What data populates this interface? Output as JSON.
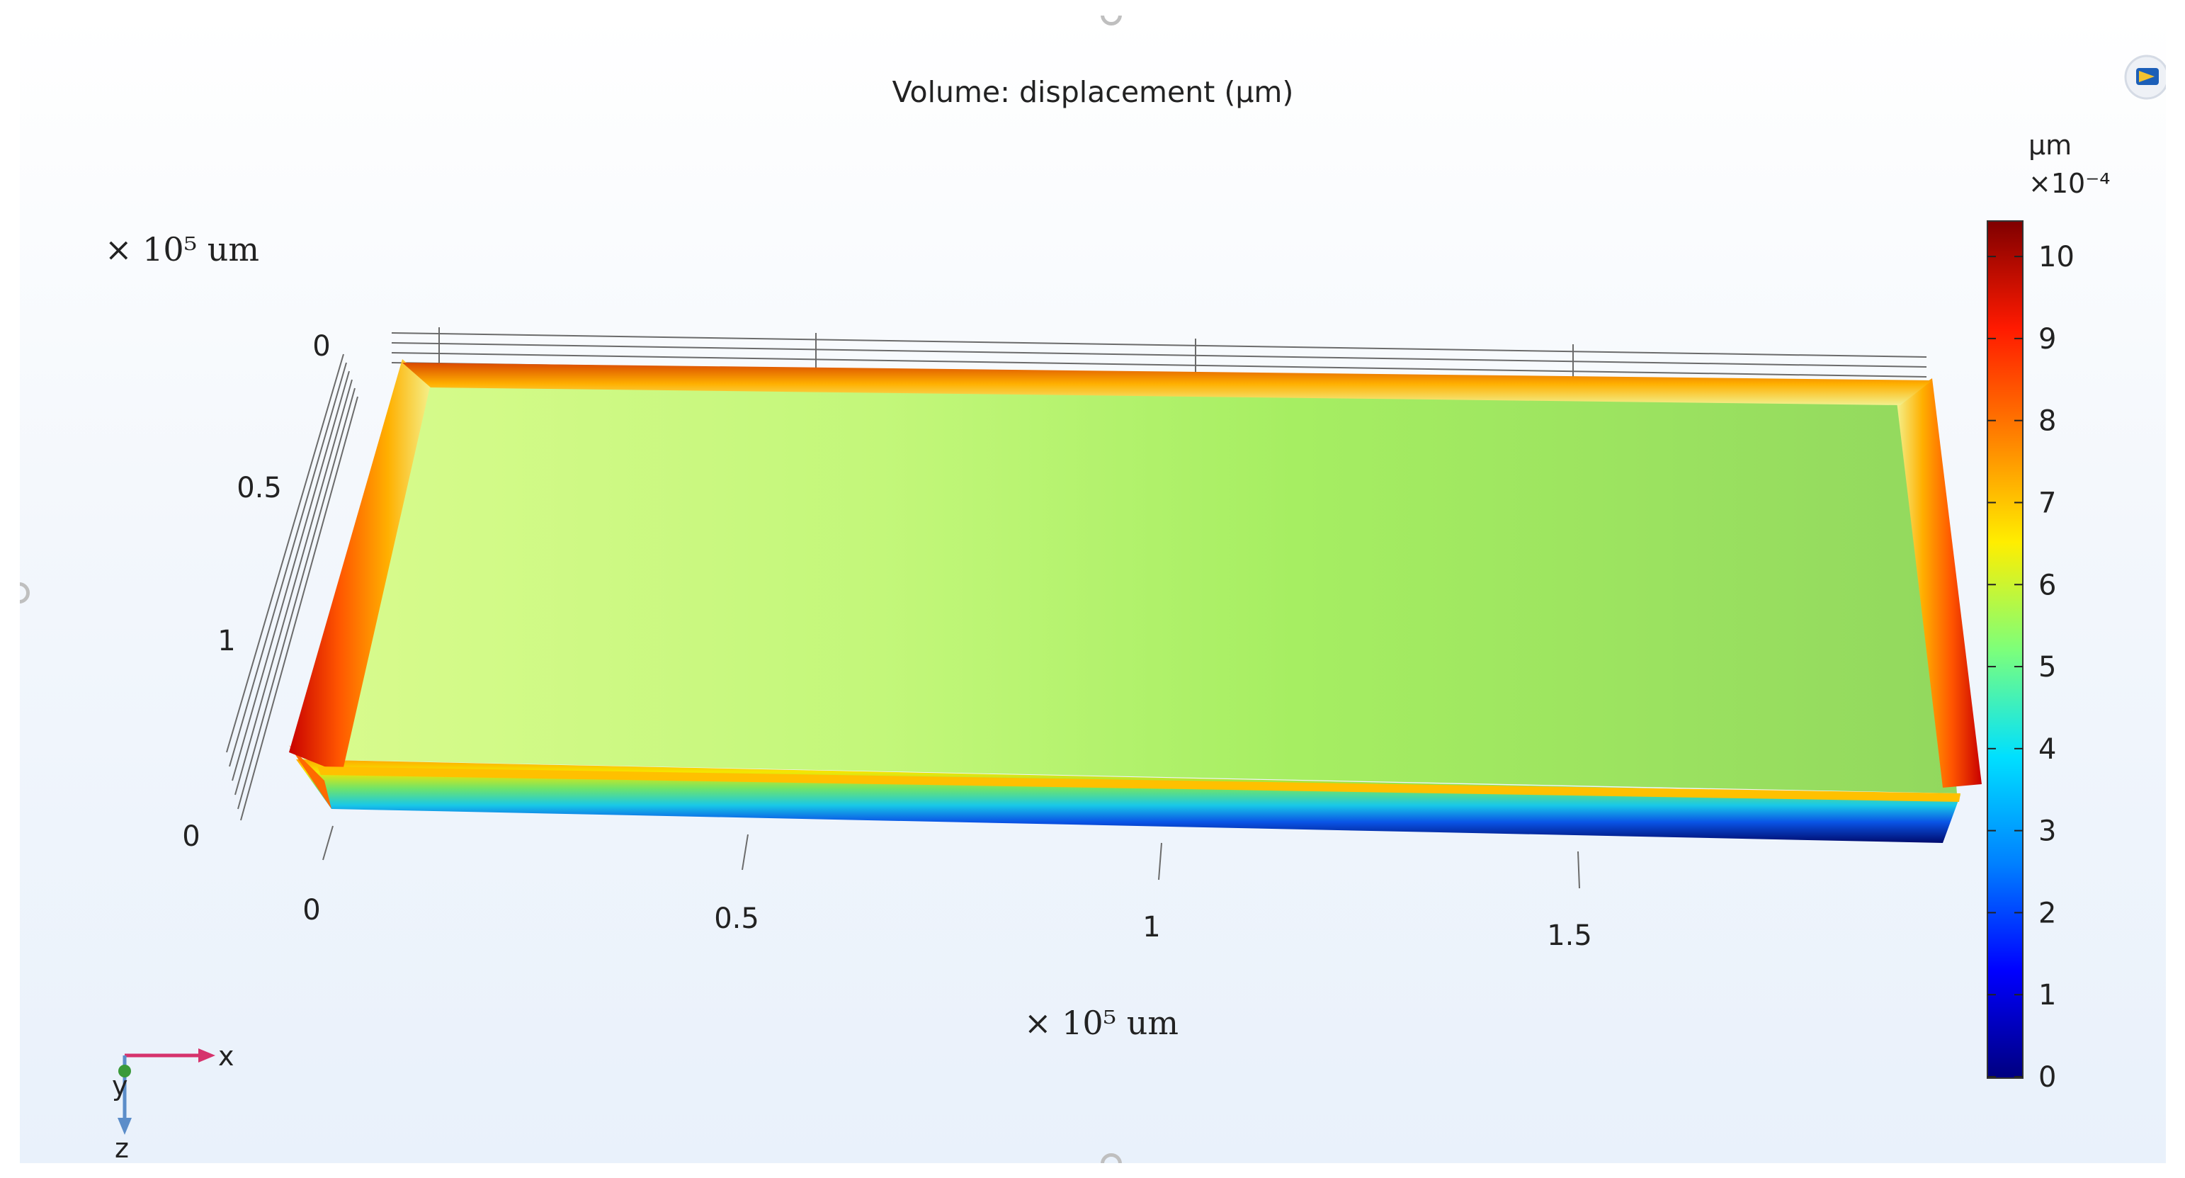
{
  "plot": {
    "title": "Volume: displacement (µm)"
  },
  "colorbar": {
    "unit": "µm",
    "scale": "×10⁻⁴",
    "colormap": "rainbow",
    "ticks": [
      "0",
      "1",
      "2",
      "3",
      "4",
      "5",
      "6",
      "7",
      "8",
      "9",
      "10"
    ]
  },
  "axes": {
    "x_multiplier": "× 10⁵ um",
    "y_multiplier": "× 10⁵ um",
    "x_ticks": [
      "0",
      "0.5",
      "1",
      "1.5"
    ],
    "y_ticks": [
      "0",
      "0.5",
      "1"
    ],
    "z_tick": "0"
  },
  "triad": {
    "x": "x",
    "y": "y",
    "z": "z"
  },
  "chart_data": {
    "type": "heatmap",
    "title": "Volume: displacement (µm)",
    "field": "displacement",
    "unit": "µm",
    "value_range": [
      0,
      0.001
    ],
    "colorbar_scale": "×10⁻⁴",
    "colorbar_ticks": [
      0,
      1,
      2,
      3,
      4,
      5,
      6,
      7,
      8,
      9,
      10
    ],
    "x_axis": {
      "multiplier": "× 10⁵ um",
      "ticks": [
        0,
        0.5,
        1,
        1.5
      ]
    },
    "y_axis": {
      "multiplier": "× 10⁵ um",
      "ticks": [
        0,
        0.5,
        1
      ]
    },
    "z_axis": {
      "ticks": [
        0
      ]
    },
    "surface_distribution": [
      {
        "x": 0,
        "value_x1e4": 6.6
      },
      {
        "x": 0.5,
        "value_x1e4": 6.1
      },
      {
        "x": 1,
        "value_x1e4": 5.7
      },
      {
        "x": 1.5,
        "value_x1e4": 5.4
      },
      {
        "x": 1.9,
        "value_x1e4": 5.2
      }
    ],
    "edges_value_x1e4": 10,
    "bottom_face_value_x1e4": 0
  }
}
